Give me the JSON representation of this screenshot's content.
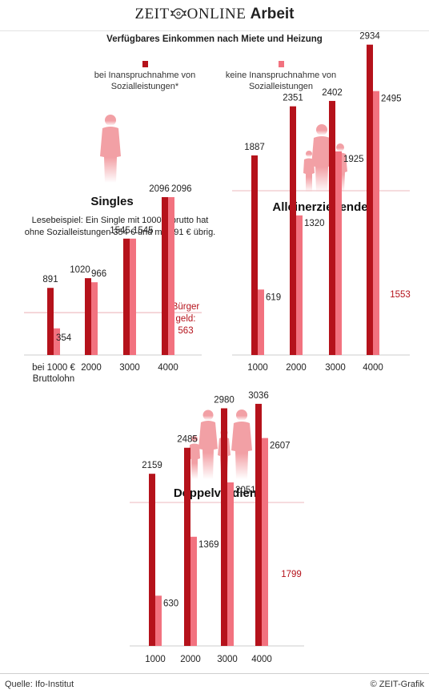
{
  "header": {
    "logo_part1": "ZEIT",
    "logo_part2": "ONLINE",
    "logo_section": "Arbeit"
  },
  "title": "Verfügbares Einkommen nach Miete und Heizung",
  "legend": [
    {
      "label": "bei Inanspruchnahme von Sozialleistungen*",
      "color": "#b5121b"
    },
    {
      "label": "keine Inanspruchnahme von Sozialleistungen",
      "color": "#f2727f"
    }
  ],
  "colors": {
    "dark": "#b5121b",
    "light": "#f2727f",
    "icon": "#f2a0a5",
    "refline": "#e8a3a8",
    "baseline": "#cccccc",
    "reflabel": "#b5121b"
  },
  "singles": {
    "heading": "Singles",
    "note": "Lesebeispiel: Ein Single mit 1000 € brutto hat ohne Sozialleistungen 354 € und mit 891 € übrig.",
    "icon": "single-person-icon"
  },
  "alleinerziehende": {
    "heading": "Alleinerziehende",
    "icon": "single-parent-family-icon"
  },
  "doppelverdiener": {
    "heading": "Doppelverdiener",
    "icon": "two-parent-family-icon"
  },
  "chart_data": [
    {
      "type": "bar",
      "title": "Singles",
      "categories": [
        "bei 1000 €\nBruttolohn",
        "2000",
        "3000",
        "4000"
      ],
      "series": [
        {
          "name": "bei Inanspruchnahme von Sozialleistungen*",
          "values": [
            891,
            1020,
            1545,
            2096
          ]
        },
        {
          "name": "keine Inanspruchnahme von Sozialleistungen",
          "values": [
            354,
            966,
            1545,
            2096
          ]
        }
      ],
      "reference": {
        "label": "Bürger\ngeld:\n563",
        "value": 563
      },
      "ylim": [
        0,
        2934
      ]
    },
    {
      "type": "bar",
      "title": "Alleinerziehende",
      "categories": [
        "1000",
        "2000",
        "3000",
        "4000"
      ],
      "series": [
        {
          "name": "bei Inanspruchnahme von Sozialleistungen*",
          "values": [
            1887,
            2351,
            2402,
            2934
          ]
        },
        {
          "name": "keine Inanspruchnahme von Sozialleistungen",
          "values": [
            619,
            1320,
            1925,
            2495
          ]
        }
      ],
      "reference": {
        "label": "1553",
        "value": 1553
      },
      "ylim": [
        0,
        2934
      ]
    },
    {
      "type": "bar",
      "title": "Doppelverdiener",
      "categories": [
        "1000",
        "2000",
        "3000",
        "4000"
      ],
      "series": [
        {
          "name": "bei Inanspruchnahme von Sozialleistungen*",
          "values": [
            2159,
            2485,
            2980,
            3036
          ]
        },
        {
          "name": "keine Inanspruchnahme von Sozialleistungen",
          "values": [
            630,
            1369,
            2051,
            2607
          ]
        }
      ],
      "reference": {
        "label": "1799",
        "value": 1799
      },
      "ylim": [
        0,
        3036
      ]
    }
  ],
  "footer": {
    "source": "Quelle: Ifo-Institut",
    "credit": "© ZEIT-Grafik"
  }
}
